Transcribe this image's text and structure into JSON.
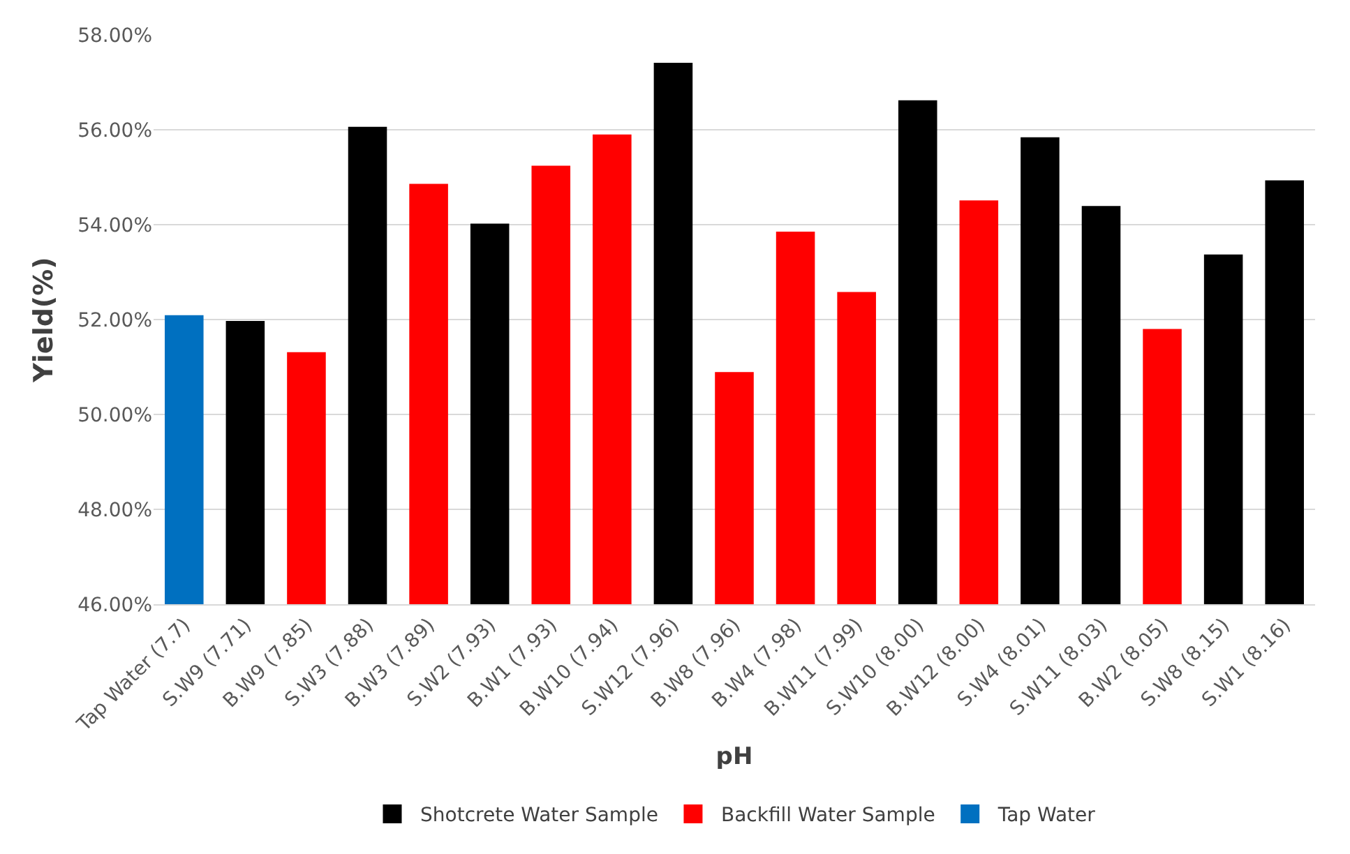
{
  "chart_data": {
    "type": "bar",
    "xlabel": "pH",
    "ylabel": "Yield(%)",
    "categories": [
      "Tap Water (7.7)",
      "S.W9 (7.71)",
      "B.W9 (7.85)",
      "S.W3 (7.88)",
      "B.W3 (7.89)",
      "S.W2 (7.93)",
      "B.W1 (7.93)",
      "B.W10 (7.94)",
      "S.W12 (7.96)",
      "B.W8 (7.96)",
      "B.W4 (7.98)",
      "B.W11 (7.99)",
      "S.W10 (8.00)",
      "B.W12 (8.00)",
      "S.W4 (8.01)",
      "S.W11 (8.03)",
      "B.W2 (8.05)",
      "S.W8 (8.15)",
      "S.W1 (8.16)"
    ],
    "series": [
      {
        "name": "Shotcrete Water Sample",
        "color": "#000000",
        "values": [
          null,
          51.95,
          null,
          56.04,
          null,
          54.0,
          null,
          null,
          57.39,
          null,
          null,
          null,
          56.6,
          null,
          55.82,
          54.37,
          null,
          53.35,
          54.91
        ]
      },
      {
        "name": "Backfill Water Sample",
        "color": "#ff0000",
        "values": [
          null,
          null,
          51.29,
          null,
          54.84,
          null,
          55.22,
          55.88,
          null,
          50.87,
          53.83,
          52.56,
          null,
          54.49,
          null,
          null,
          51.78,
          null,
          null
        ]
      },
      {
        "name": "Tap Water",
        "color": "#0070c0",
        "values": [
          52.07,
          null,
          null,
          null,
          null,
          null,
          null,
          null,
          null,
          null,
          null,
          null,
          null,
          null,
          null,
          null,
          null,
          null,
          null
        ]
      }
    ],
    "ylim": [
      46,
      58
    ],
    "yticks": [
      {
        "value": 46,
        "label": "46.00%"
      },
      {
        "value": 48,
        "label": "48.00%"
      },
      {
        "value": 50,
        "label": "50.00%"
      },
      {
        "value": 52,
        "label": "52.00%"
      },
      {
        "value": 54,
        "label": "54.00%"
      },
      {
        "value": 56,
        "label": "56.00%"
      },
      {
        "value": 58,
        "label": "58.00%"
      }
    ],
    "grid": "y",
    "legend": "bottom"
  }
}
